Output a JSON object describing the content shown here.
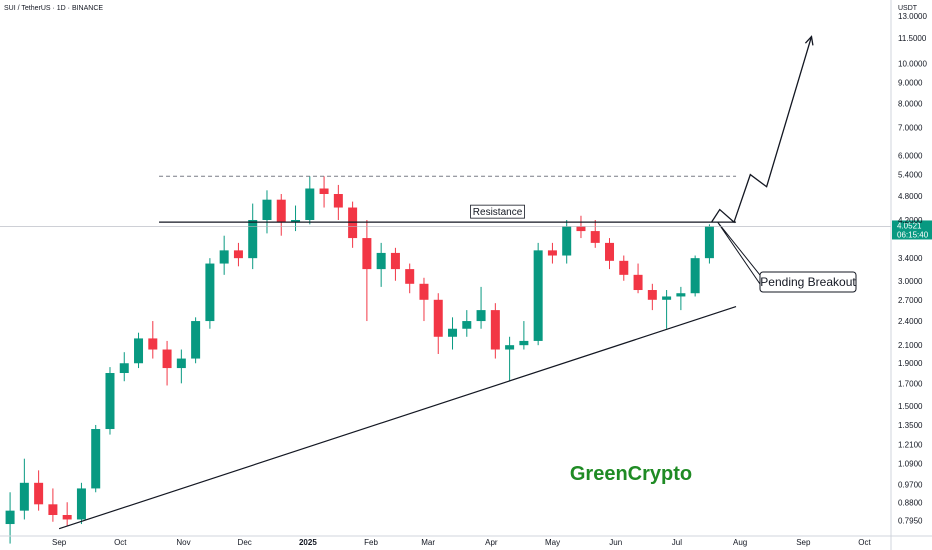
{
  "chart_data": {
    "type": "candlestick",
    "title": "SUI / TetherUS · 1D · BINANCE",
    "currency": "USDT",
    "y_scale": "log",
    "ylim": [
      0.73,
      14.2
    ],
    "y_ticks": [
      "13.0000",
      "11.5000",
      "10.0000",
      "9.0000",
      "8.0000",
      "7.0000",
      "6.0000",
      "5.4000",
      "4.8000",
      "4.2000",
      "3.4000",
      "3.0000",
      "2.7000",
      "2.4000",
      "2.1000",
      "1.9000",
      "1.7000",
      "1.5000",
      "1.3500",
      "1.2100",
      "1.0900",
      "0.9700",
      "0.8800",
      "0.7950"
    ],
    "x_ticks": [
      "Sep",
      "Oct",
      "Nov",
      "Dec",
      "2025",
      "Feb",
      "Mar",
      "Apr",
      "May",
      "Jun",
      "Jul",
      "Aug",
      "Sep",
      "Oct"
    ],
    "x_range": [
      "2024-08-03",
      "2025-10-14"
    ],
    "candles": [
      [
        "2024-08-05",
        0.78,
        0.93,
        0.7,
        0.84
      ],
      [
        "2024-08-12",
        0.84,
        1.12,
        0.8,
        0.98
      ],
      [
        "2024-08-19",
        0.98,
        1.05,
        0.84,
        0.87
      ],
      [
        "2024-08-26",
        0.87,
        0.95,
        0.79,
        0.82
      ],
      [
        "2024-09-02",
        0.82,
        0.88,
        0.77,
        0.8
      ],
      [
        "2024-09-09",
        0.8,
        0.98,
        0.78,
        0.95
      ],
      [
        "2024-09-16",
        0.95,
        1.35,
        0.93,
        1.32
      ],
      [
        "2024-09-23",
        1.32,
        1.86,
        1.28,
        1.8
      ],
      [
        "2024-09-30",
        1.8,
        2.02,
        1.72,
        1.9
      ],
      [
        "2024-10-07",
        1.9,
        2.25,
        1.85,
        2.18
      ],
      [
        "2024-10-14",
        2.18,
        2.4,
        1.95,
        2.05
      ],
      [
        "2024-10-21",
        2.05,
        2.15,
        1.68,
        1.85
      ],
      [
        "2024-10-28",
        1.85,
        2.05,
        1.7,
        1.95
      ],
      [
        "2024-11-04",
        1.95,
        2.45,
        1.9,
        2.4
      ],
      [
        "2024-11-11",
        2.4,
        3.4,
        2.3,
        3.3
      ],
      [
        "2024-11-18",
        3.3,
        3.85,
        3.1,
        3.55
      ],
      [
        "2024-11-25",
        3.55,
        3.7,
        3.25,
        3.4
      ],
      [
        "2024-12-02",
        3.4,
        4.6,
        3.2,
        4.2
      ],
      [
        "2024-12-09",
        4.2,
        4.95,
        3.9,
        4.7
      ],
      [
        "2024-12-16",
        4.7,
        4.85,
        3.85,
        4.15
      ],
      [
        "2024-12-23",
        4.15,
        4.55,
        3.95,
        4.2
      ],
      [
        "2024-12-30",
        4.2,
        5.35,
        4.1,
        5.0
      ],
      [
        "2025-01-06",
        5.0,
        5.35,
        4.5,
        4.85
      ],
      [
        "2025-01-13",
        4.85,
        5.1,
        4.2,
        4.5
      ],
      [
        "2025-01-20",
        4.5,
        4.65,
        3.6,
        3.8
      ],
      [
        "2025-01-27",
        3.8,
        4.2,
        2.4,
        3.2
      ],
      [
        "2025-02-03",
        3.2,
        3.7,
        2.9,
        3.5
      ],
      [
        "2025-02-10",
        3.5,
        3.6,
        3.0,
        3.2
      ],
      [
        "2025-02-17",
        3.2,
        3.3,
        2.8,
        2.95
      ],
      [
        "2025-02-24",
        2.95,
        3.05,
        2.4,
        2.7
      ],
      [
        "2025-03-03",
        2.7,
        2.8,
        2.0,
        2.2
      ],
      [
        "2025-03-10",
        2.2,
        2.45,
        2.05,
        2.3
      ],
      [
        "2025-03-17",
        2.3,
        2.55,
        2.2,
        2.4
      ],
      [
        "2025-03-24",
        2.4,
        2.9,
        2.3,
        2.55
      ],
      [
        "2025-03-31",
        2.55,
        2.65,
        1.95,
        2.05
      ],
      [
        "2025-04-07",
        2.05,
        2.2,
        1.72,
        2.1
      ],
      [
        "2025-04-14",
        2.1,
        2.4,
        2.05,
        2.15
      ],
      [
        "2025-04-21",
        2.15,
        3.7,
        2.1,
        3.55
      ],
      [
        "2025-04-28",
        3.55,
        3.7,
        3.3,
        3.45
      ],
      [
        "2025-05-05",
        3.45,
        4.2,
        3.3,
        4.05
      ],
      [
        "2025-05-12",
        4.05,
        4.3,
        3.8,
        3.95
      ],
      [
        "2025-05-19",
        3.95,
        4.2,
        3.6,
        3.7
      ],
      [
        "2025-05-26",
        3.7,
        3.8,
        3.2,
        3.35
      ],
      [
        "2025-06-02",
        3.35,
        3.45,
        3.0,
        3.1
      ],
      [
        "2025-06-09",
        3.1,
        3.3,
        2.8,
        2.85
      ],
      [
        "2025-06-16",
        2.85,
        2.95,
        2.55,
        2.7
      ],
      [
        "2025-06-23",
        2.7,
        2.85,
        2.3,
        2.75
      ],
      [
        "2025-06-30",
        2.75,
        2.9,
        2.55,
        2.8
      ],
      [
        "2025-07-07",
        2.8,
        3.45,
        2.75,
        3.4
      ],
      [
        "2025-07-14",
        3.4,
        4.1,
        3.3,
        4.05
      ]
    ],
    "last_price": {
      "value": 4.0521,
      "label": "4.0521",
      "countdown": "06:15:40",
      "color": "#089981"
    },
    "resistance": {
      "label": "Resistance",
      "value": 4.15,
      "from": "2024-10-20",
      "to": "2025-07-30"
    },
    "top_dashed_level": {
      "value": 5.35,
      "from": "2024-10-20",
      "to": "2025-07-30"
    },
    "support_trendline": {
      "from": [
        "2024-09-01",
        0.76
      ],
      "to": [
        "2025-07-30",
        2.6
      ]
    },
    "projection_path": [
      [
        "2025-07-18",
        4.15
      ],
      [
        "2025-07-22",
        4.45
      ],
      [
        "2025-07-29",
        4.15
      ],
      [
        "2025-08-06",
        5.4
      ],
      [
        "2025-08-14",
        5.05
      ],
      [
        "2025-09-05",
        11.6
      ]
    ],
    "breakout_callout": {
      "label": "Pending Breakout",
      "anchor": [
        "2025-07-21",
        4.15
      ]
    },
    "colors": {
      "up": "#089981",
      "down": "#f23645",
      "line": "#131722",
      "axis": "#d1d4dc"
    }
  },
  "watermark": {
    "text": "GreenCrypto",
    "color": "#1f8b24"
  }
}
